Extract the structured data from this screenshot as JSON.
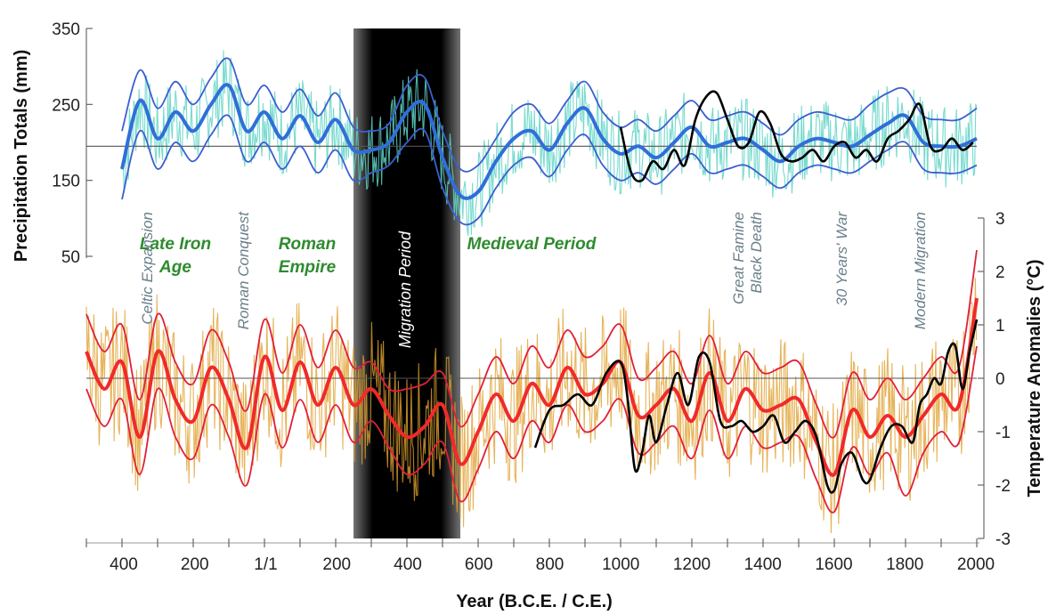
{
  "chart_data": {
    "type": "line",
    "xlabel": "Year (B.C.E. / C.E.)",
    "x_ticks": [
      "400",
      "200",
      "1/1",
      "200",
      "400",
      "600",
      "800",
      "1000",
      "1200",
      "1400",
      "1600",
      "1800",
      "2000"
    ],
    "x_tick_years": [
      -400,
      -200,
      0,
      200,
      400,
      600,
      800,
      1000,
      1200,
      1400,
      1600,
      1800,
      2000
    ],
    "xlim": [
      -500,
      2000
    ],
    "colors": {
      "precip_raw": "#5fd3c7",
      "precip_band": "#3a5fd0",
      "precip_mean": "#2f6fd8",
      "temp_raw": "#e0a030",
      "temp_band": "#e0203a",
      "temp_mean": "#f02a2a",
      "instrumental": "#000000",
      "period_label": "#2e8b2e",
      "event_label": "#6a7f8a"
    },
    "migration_period_shade": {
      "start": 250,
      "end": 550
    },
    "precipitation": {
      "ylabel": "Precipitation Totals (mm)",
      "y_ticks": [
        "350",
        "250",
        "150",
        "50"
      ],
      "y_tick_values": [
        350,
        250,
        150,
        50
      ],
      "ylim": [
        50,
        350
      ],
      "baseline": 195,
      "years": [
        -400,
        -350,
        -300,
        -250,
        -200,
        -150,
        -100,
        -50,
        0,
        50,
        100,
        150,
        200,
        250,
        300,
        350,
        400,
        450,
        500,
        550,
        600,
        650,
        700,
        750,
        800,
        850,
        900,
        950,
        1000,
        1050,
        1100,
        1150,
        1200,
        1250,
        1300,
        1350,
        1400,
        1450,
        1500,
        1550,
        1600,
        1650,
        1700,
        1750,
        1800,
        1850,
        1900,
        1950,
        2000
      ],
      "mean": [
        165,
        255,
        205,
        240,
        215,
        250,
        275,
        215,
        240,
        205,
        235,
        200,
        230,
        190,
        190,
        200,
        240,
        250,
        180,
        130,
        135,
        175,
        205,
        215,
        190,
        225,
        245,
        205,
        185,
        195,
        180,
        200,
        220,
        195,
        200,
        205,
        190,
        175,
        195,
        205,
        200,
        195,
        210,
        225,
        235,
        200,
        195,
        195,
        205
      ],
      "upper": [
        215,
        295,
        245,
        280,
        250,
        285,
        310,
        250,
        275,
        240,
        270,
        235,
        265,
        220,
        215,
        225,
        275,
        285,
        215,
        165,
        170,
        205,
        240,
        250,
        225,
        255,
        280,
        240,
        220,
        230,
        215,
        235,
        255,
        230,
        235,
        240,
        225,
        210,
        230,
        240,
        235,
        230,
        250,
        265,
        270,
        235,
        230,
        230,
        245
      ],
      "lower": [
        125,
        215,
        165,
        200,
        175,
        210,
        235,
        175,
        200,
        165,
        195,
        160,
        190,
        150,
        160,
        170,
        200,
        215,
        140,
        95,
        100,
        140,
        170,
        180,
        155,
        190,
        210,
        170,
        150,
        160,
        145,
        165,
        185,
        160,
        165,
        170,
        155,
        140,
        160,
        170,
        165,
        160,
        175,
        190,
        200,
        165,
        160,
        160,
        170
      ],
      "instrumental_years": [
        1000,
        1030,
        1060,
        1090,
        1120,
        1150,
        1180,
        1210,
        1240,
        1270,
        1300,
        1330,
        1360,
        1390,
        1420,
        1450,
        1480,
        1510,
        1540,
        1570,
        1600,
        1630,
        1660,
        1690,
        1720,
        1750,
        1780,
        1810,
        1840,
        1870,
        1900,
        1930,
        1960,
        1990
      ],
      "instrumental": [
        220,
        160,
        150,
        175,
        165,
        190,
        170,
        230,
        260,
        265,
        230,
        195,
        200,
        240,
        225,
        185,
        175,
        180,
        190,
        175,
        195,
        200,
        180,
        190,
        175,
        205,
        215,
        230,
        250,
        195,
        190,
        205,
        190,
        200
      ]
    },
    "temperature": {
      "ylabel": "Temperature Anomalies (°C)",
      "y_ticks": [
        "3",
        "2",
        "1",
        "0",
        "-1",
        "-2",
        "-3"
      ],
      "y_tick_values": [
        3,
        2,
        1,
        0,
        -1,
        -2,
        -3
      ],
      "ylim": [
        -3,
        3
      ],
      "baseline": 0,
      "years": [
        -500,
        -450,
        -400,
        -350,
        -300,
        -250,
        -200,
        -150,
        -100,
        -50,
        0,
        50,
        100,
        150,
        200,
        250,
        300,
        350,
        400,
        450,
        500,
        550,
        600,
        650,
        700,
        750,
        800,
        850,
        900,
        950,
        1000,
        1050,
        1100,
        1150,
        1200,
        1250,
        1300,
        1350,
        1400,
        1450,
        1500,
        1550,
        1600,
        1650,
        1700,
        1750,
        1800,
        1850,
        1900,
        1950,
        2000
      ],
      "mean": [
        0.5,
        -0.2,
        0.3,
        -1.1,
        0.5,
        -0.4,
        -0.8,
        0.2,
        -0.4,
        -1.3,
        0.4,
        -0.6,
        0.3,
        -0.5,
        0.2,
        -0.5,
        -0.2,
        -0.7,
        -1.1,
        -0.9,
        -0.5,
        -1.6,
        -1.0,
        -0.3,
        -0.8,
        -0.1,
        -0.5,
        0.2,
        -0.3,
        -0.1,
        0.3,
        -0.7,
        -0.5,
        -0.2,
        -0.8,
        0.1,
        -0.8,
        -0.2,
        -0.6,
        -0.5,
        -0.4,
        -1.2,
        -1.8,
        -0.6,
        -1.1,
        -0.7,
        -1.1,
        -0.7,
        -0.3,
        -0.5,
        1.5
      ],
      "upper": [
        1.2,
        0.5,
        1.0,
        -0.4,
        1.2,
        0.3,
        -0.1,
        0.9,
        0.3,
        -0.6,
        1.1,
        0.1,
        1.0,
        0.2,
        0.9,
        0.2,
        0.3,
        -0.2,
        -0.2,
        -0.1,
        0.1,
        -0.9,
        -0.3,
        0.4,
        -0.1,
        0.6,
        0.2,
        0.9,
        0.4,
        0.6,
        1.0,
        0.0,
        0.2,
        0.5,
        -0.1,
        0.8,
        -0.1,
        0.5,
        0.1,
        0.2,
        0.3,
        -0.5,
        -1.1,
        0.1,
        -0.4,
        0.0,
        -0.4,
        0.0,
        0.4,
        0.2,
        2.4
      ],
      "lower": [
        -0.2,
        -0.9,
        -0.4,
        -1.8,
        -0.2,
        -1.1,
        -1.5,
        -0.5,
        -1.1,
        -2.0,
        -0.3,
        -1.3,
        -0.4,
        -1.2,
        -0.5,
        -1.2,
        -0.8,
        -1.3,
        -1.8,
        -1.6,
        -1.2,
        -2.3,
        -1.7,
        -1.0,
        -1.5,
        -0.8,
        -1.2,
        -0.5,
        -1.0,
        -0.8,
        -0.4,
        -1.4,
        -1.2,
        -0.9,
        -1.5,
        -0.6,
        -1.5,
        -0.9,
        -1.3,
        -1.2,
        -1.1,
        -1.9,
        -2.5,
        -1.3,
        -1.8,
        -1.4,
        -2.2,
        -1.4,
        -1.0,
        -1.2,
        0.6
      ],
      "instrumental_years": [
        760,
        800,
        840,
        880,
        920,
        960,
        1000,
        1020,
        1040,
        1060,
        1080,
        1100,
        1130,
        1160,
        1190,
        1220,
        1250,
        1280,
        1310,
        1340,
        1370,
        1400,
        1430,
        1460,
        1490,
        1520,
        1550,
        1580,
        1600,
        1620,
        1650,
        1680,
        1700,
        1730,
        1760,
        1790,
        1820,
        1840,
        1860,
        1880,
        1900,
        1920,
        1940,
        1960,
        1980,
        2000
      ],
      "instrumental": [
        -1.3,
        -0.6,
        -0.5,
        -0.3,
        -0.5,
        0.1,
        0.3,
        -0.4,
        -1.7,
        -1.4,
        -0.7,
        -1.2,
        -0.5,
        0.1,
        -0.5,
        0.4,
        0.3,
        -0.8,
        -0.9,
        -0.8,
        -1.0,
        -0.9,
        -0.7,
        -1.2,
        -1.0,
        -0.8,
        -1.1,
        -2.0,
        -2.1,
        -1.6,
        -1.4,
        -1.9,
        -1.9,
        -1.3,
        -0.9,
        -0.9,
        -1.2,
        -0.5,
        -0.3,
        0.0,
        -0.1,
        0.5,
        0.6,
        -0.2,
        0.5,
        1.1
      ]
    },
    "period_labels": [
      {
        "text": "Late Iron",
        "year": -250,
        "level": "upper"
      },
      {
        "text": "Age",
        "year": -250,
        "level": "lower"
      },
      {
        "text": "Roman",
        "year": 120,
        "level": "upper"
      },
      {
        "text": "Empire",
        "year": 120,
        "level": "lower"
      },
      {
        "text": "Medieval Period",
        "year": 750,
        "level": "upper"
      }
    ],
    "event_labels": [
      {
        "text": "Celtic Expansion",
        "year": -330
      },
      {
        "text": "Roman Conquest",
        "year": -60
      },
      {
        "text": "Migration Period",
        "year": 395
      },
      {
        "text": "Great Famine",
        "year": 1330
      },
      {
        "text": "Black Death",
        "year": 1380
      },
      {
        "text": "30 Years' War",
        "year": 1620
      },
      {
        "text": "Modern Migration",
        "year": 1840
      }
    ]
  }
}
